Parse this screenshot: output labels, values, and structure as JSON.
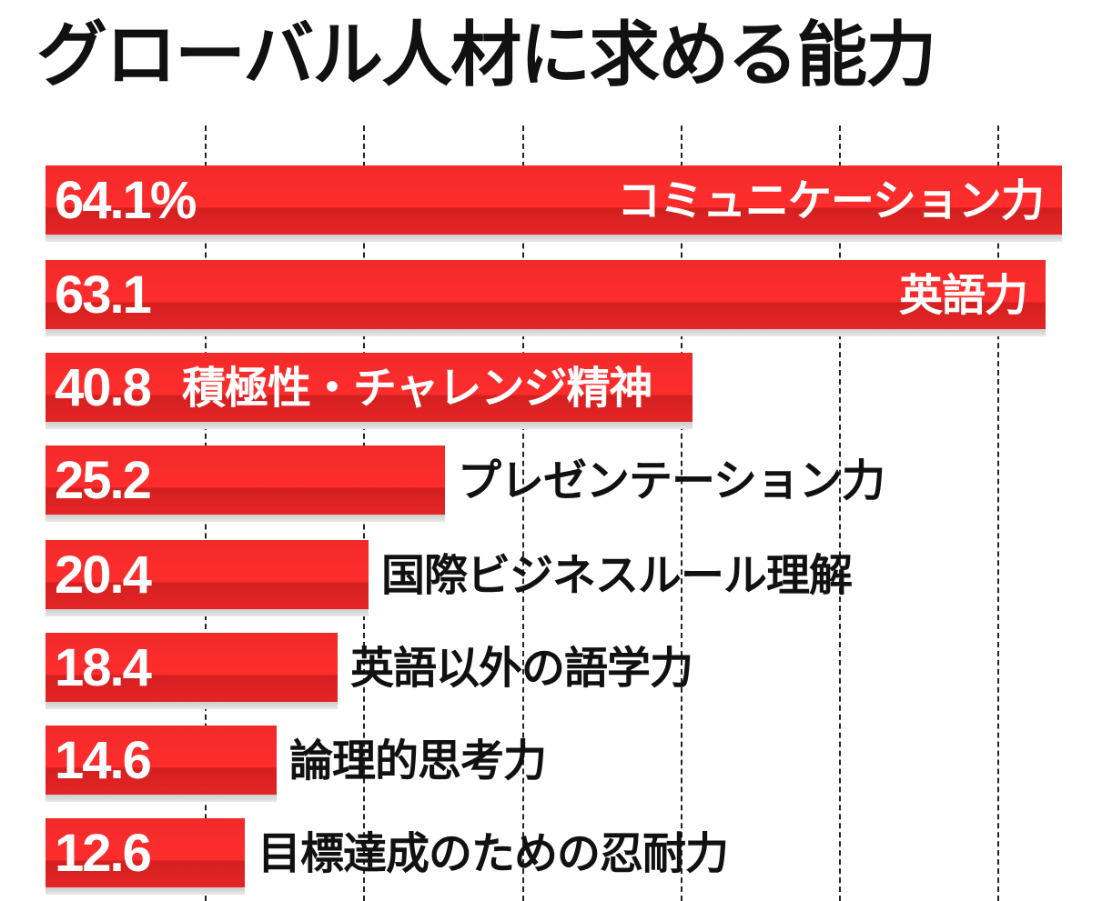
{
  "title": "グローバル人材に求める能力",
  "colors": {
    "bar": "#ff2d2d",
    "bar_dark": "#d42020",
    "text_out": "#111111",
    "text_in": "#ffffff"
  },
  "chart_data": {
    "type": "bar",
    "orientation": "horizontal",
    "title": "グローバル人材に求める能力",
    "unit": "%",
    "categories": [
      "コミュニケーション力",
      "英語力",
      "積極性・チャレンジ精神",
      "プレゼンテーション力",
      "国際ビジネスルール理解",
      "英語以外の語学力",
      "論理的思考力",
      "目標達成のための忍耐力"
    ],
    "values": [
      64.1,
      63.1,
      40.8,
      25.2,
      20.4,
      18.4,
      14.6,
      12.6
    ],
    "value_labels": [
      "64.1%",
      "63.1",
      "40.8",
      "25.2",
      "20.4",
      "18.4",
      "14.6",
      "12.6"
    ],
    "xlim": [
      0,
      65
    ],
    "gridlines": [
      10,
      20,
      30,
      40,
      50,
      60
    ],
    "grid_style": "dashed vertical",
    "legend": "none"
  },
  "rows": [
    {
      "value_label": "64.1%",
      "label": "コミュニケーション力",
      "inside": true
    },
    {
      "value_label": "63.1",
      "label": "英語力",
      "inside": true
    },
    {
      "value_label": "40.8",
      "label": "積極性・チャレンジ精神",
      "inside": true
    },
    {
      "value_label": "25.2",
      "label": "プレゼンテーション力",
      "inside": false
    },
    {
      "value_label": "20.4",
      "label": "国際ビジネスルール理解",
      "inside": false
    },
    {
      "value_label": "18.4",
      "label": "英語以外の語学力",
      "inside": false
    },
    {
      "value_label": "14.6",
      "label": "論理的思考力",
      "inside": false
    },
    {
      "value_label": "12.6",
      "label": "目標達成のための忍耐力",
      "inside": false
    }
  ]
}
